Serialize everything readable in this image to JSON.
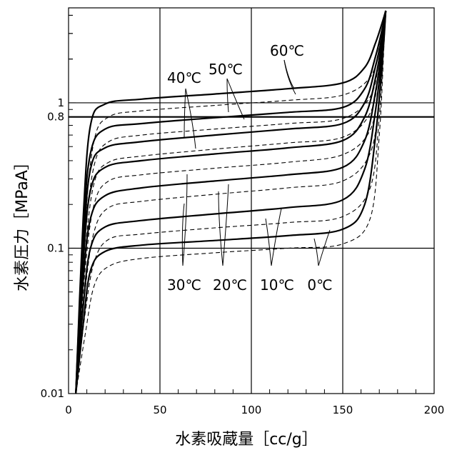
{
  "chart_data": {
    "type": "line",
    "xlabel": "水素吸蔵量［cc/g］",
    "ylabel": "水素圧力［MPaA］",
    "xlim": [
      0,
      200
    ],
    "ylim": [
      0.01,
      4.5
    ],
    "y_scale": "log",
    "x_ticks": [
      "0",
      "50",
      "100",
      "150",
      "200"
    ],
    "y_ticks": [
      {
        "value": 0.01,
        "label": "0.01"
      },
      {
        "value": 0.1,
        "label": "0.1"
      },
      {
        "value": 0.8,
        "label": "0.8"
      },
      {
        "value": 1,
        "label": "1"
      }
    ],
    "grid": "vertical lines at 50, 100, 150; horizontal lines at 0.1, 0.8, 1",
    "temperature_labels": [
      "0℃",
      "10℃",
      "20℃",
      "30℃",
      "40℃",
      "50℃",
      "60℃"
    ],
    "series": [
      {
        "name": "0℃",
        "style": "solid",
        "x": [
          4,
          8,
          12,
          20,
          40,
          80,
          120,
          150,
          162,
          168,
          172,
          173.5
        ],
        "y": [
          0.01,
          0.03,
          0.07,
          0.095,
          0.105,
          0.113,
          0.122,
          0.135,
          0.2,
          0.6,
          2.2,
          4.3
        ]
      },
      {
        "name": "0℃",
        "style": "dashed",
        "x": [
          4,
          9,
          14,
          22,
          40,
          80,
          120,
          150,
          165,
          170,
          172.5,
          173.5
        ],
        "y": [
          0.01,
          0.025,
          0.055,
          0.075,
          0.085,
          0.093,
          0.1,
          0.107,
          0.16,
          0.6,
          2.4,
          4.3
        ]
      },
      {
        "name": "10℃",
        "style": "solid",
        "x": [
          4,
          8,
          12,
          20,
          40,
          80,
          120,
          150,
          162,
          168,
          172,
          173.5
        ],
        "y": [
          0.01,
          0.04,
          0.1,
          0.14,
          0.155,
          0.172,
          0.19,
          0.215,
          0.35,
          0.9,
          2.5,
          4.3
        ]
      },
      {
        "name": "10℃",
        "style": "dashed",
        "x": [
          4,
          9,
          14,
          22,
          40,
          80,
          120,
          150,
          165,
          170,
          172.5,
          173.5
        ],
        "y": [
          0.01,
          0.035,
          0.08,
          0.115,
          0.125,
          0.138,
          0.15,
          0.165,
          0.26,
          0.8,
          2.6,
          4.3
        ]
      },
      {
        "name": "20℃",
        "style": "solid",
        "x": [
          4,
          8,
          12,
          20,
          40,
          80,
          120,
          150,
          162,
          168,
          172,
          173.5
        ],
        "y": [
          0.01,
          0.06,
          0.16,
          0.23,
          0.26,
          0.29,
          0.32,
          0.36,
          0.55,
          1.2,
          2.7,
          4.3
        ]
      },
      {
        "name": "20℃",
        "style": "dashed",
        "x": [
          4,
          9,
          14,
          22,
          40,
          80,
          120,
          150,
          165,
          170,
          172.5,
          173.5
        ],
        "y": [
          0.01,
          0.05,
          0.13,
          0.19,
          0.21,
          0.235,
          0.26,
          0.29,
          0.45,
          1.1,
          2.8,
          4.3
        ]
      },
      {
        "name": "30℃",
        "style": "solid",
        "x": [
          4,
          8,
          12,
          20,
          40,
          80,
          120,
          150,
          162,
          168,
          172,
          173.5
        ],
        "y": [
          0.01,
          0.08,
          0.25,
          0.36,
          0.4,
          0.445,
          0.49,
          0.55,
          0.8,
          1.5,
          2.9,
          4.3
        ]
      },
      {
        "name": "30℃",
        "style": "dashed",
        "x": [
          4,
          9,
          14,
          22,
          40,
          80,
          120,
          150,
          165,
          170,
          172.5,
          173.5
        ],
        "y": [
          0.01,
          0.07,
          0.2,
          0.29,
          0.32,
          0.355,
          0.39,
          0.44,
          0.65,
          1.4,
          3.0,
          4.3
        ]
      },
      {
        "name": "40℃",
        "style": "solid",
        "x": [
          4,
          8,
          12,
          20,
          40,
          80,
          120,
          150,
          162,
          168,
          172,
          173.5
        ],
        "y": [
          0.01,
          0.1,
          0.35,
          0.49,
          0.54,
          0.6,
          0.66,
          0.72,
          1.0,
          1.8,
          3.1,
          4.3
        ]
      },
      {
        "name": "40℃",
        "style": "dashed",
        "x": [
          4,
          9,
          14,
          22,
          40,
          80,
          120,
          150,
          165,
          170,
          172.5,
          173.5
        ],
        "y": [
          0.01,
          0.09,
          0.28,
          0.39,
          0.43,
          0.48,
          0.53,
          0.58,
          0.85,
          1.7,
          3.2,
          4.3
        ]
      },
      {
        "name": "50℃",
        "style": "solid",
        "x": [
          4,
          8,
          12,
          20,
          40,
          80,
          120,
          150,
          162,
          168,
          172,
          173.5
        ],
        "y": [
          0.01,
          0.13,
          0.45,
          0.66,
          0.72,
          0.79,
          0.86,
          0.93,
          1.25,
          2.1,
          3.4,
          4.3
        ]
      },
      {
        "name": "50℃",
        "style": "dashed",
        "x": [
          4,
          9,
          14,
          22,
          40,
          80,
          120,
          150,
          165,
          170,
          172.5,
          173.5
        ],
        "y": [
          0.01,
          0.11,
          0.37,
          0.54,
          0.6,
          0.66,
          0.72,
          0.78,
          1.1,
          2.0,
          3.5,
          4.3
        ]
      },
      {
        "name": "60℃",
        "style": "solid",
        "x": [
          4,
          8,
          12,
          20,
          40,
          80,
          120,
          150,
          162,
          168,
          172,
          173.5
        ],
        "y": [
          0.01,
          0.16,
          0.7,
          0.98,
          1.06,
          1.15,
          1.25,
          1.37,
          1.75,
          2.6,
          3.7,
          4.3
        ]
      },
      {
        "name": "60℃",
        "style": "dashed",
        "x": [
          4,
          9,
          14,
          22,
          40,
          80,
          120,
          150,
          165,
          170,
          172.5,
          173.5
        ],
        "y": [
          0.01,
          0.14,
          0.55,
          0.8,
          0.88,
          0.96,
          1.04,
          1.13,
          1.5,
          2.4,
          3.8,
          4.3
        ]
      }
    ]
  }
}
